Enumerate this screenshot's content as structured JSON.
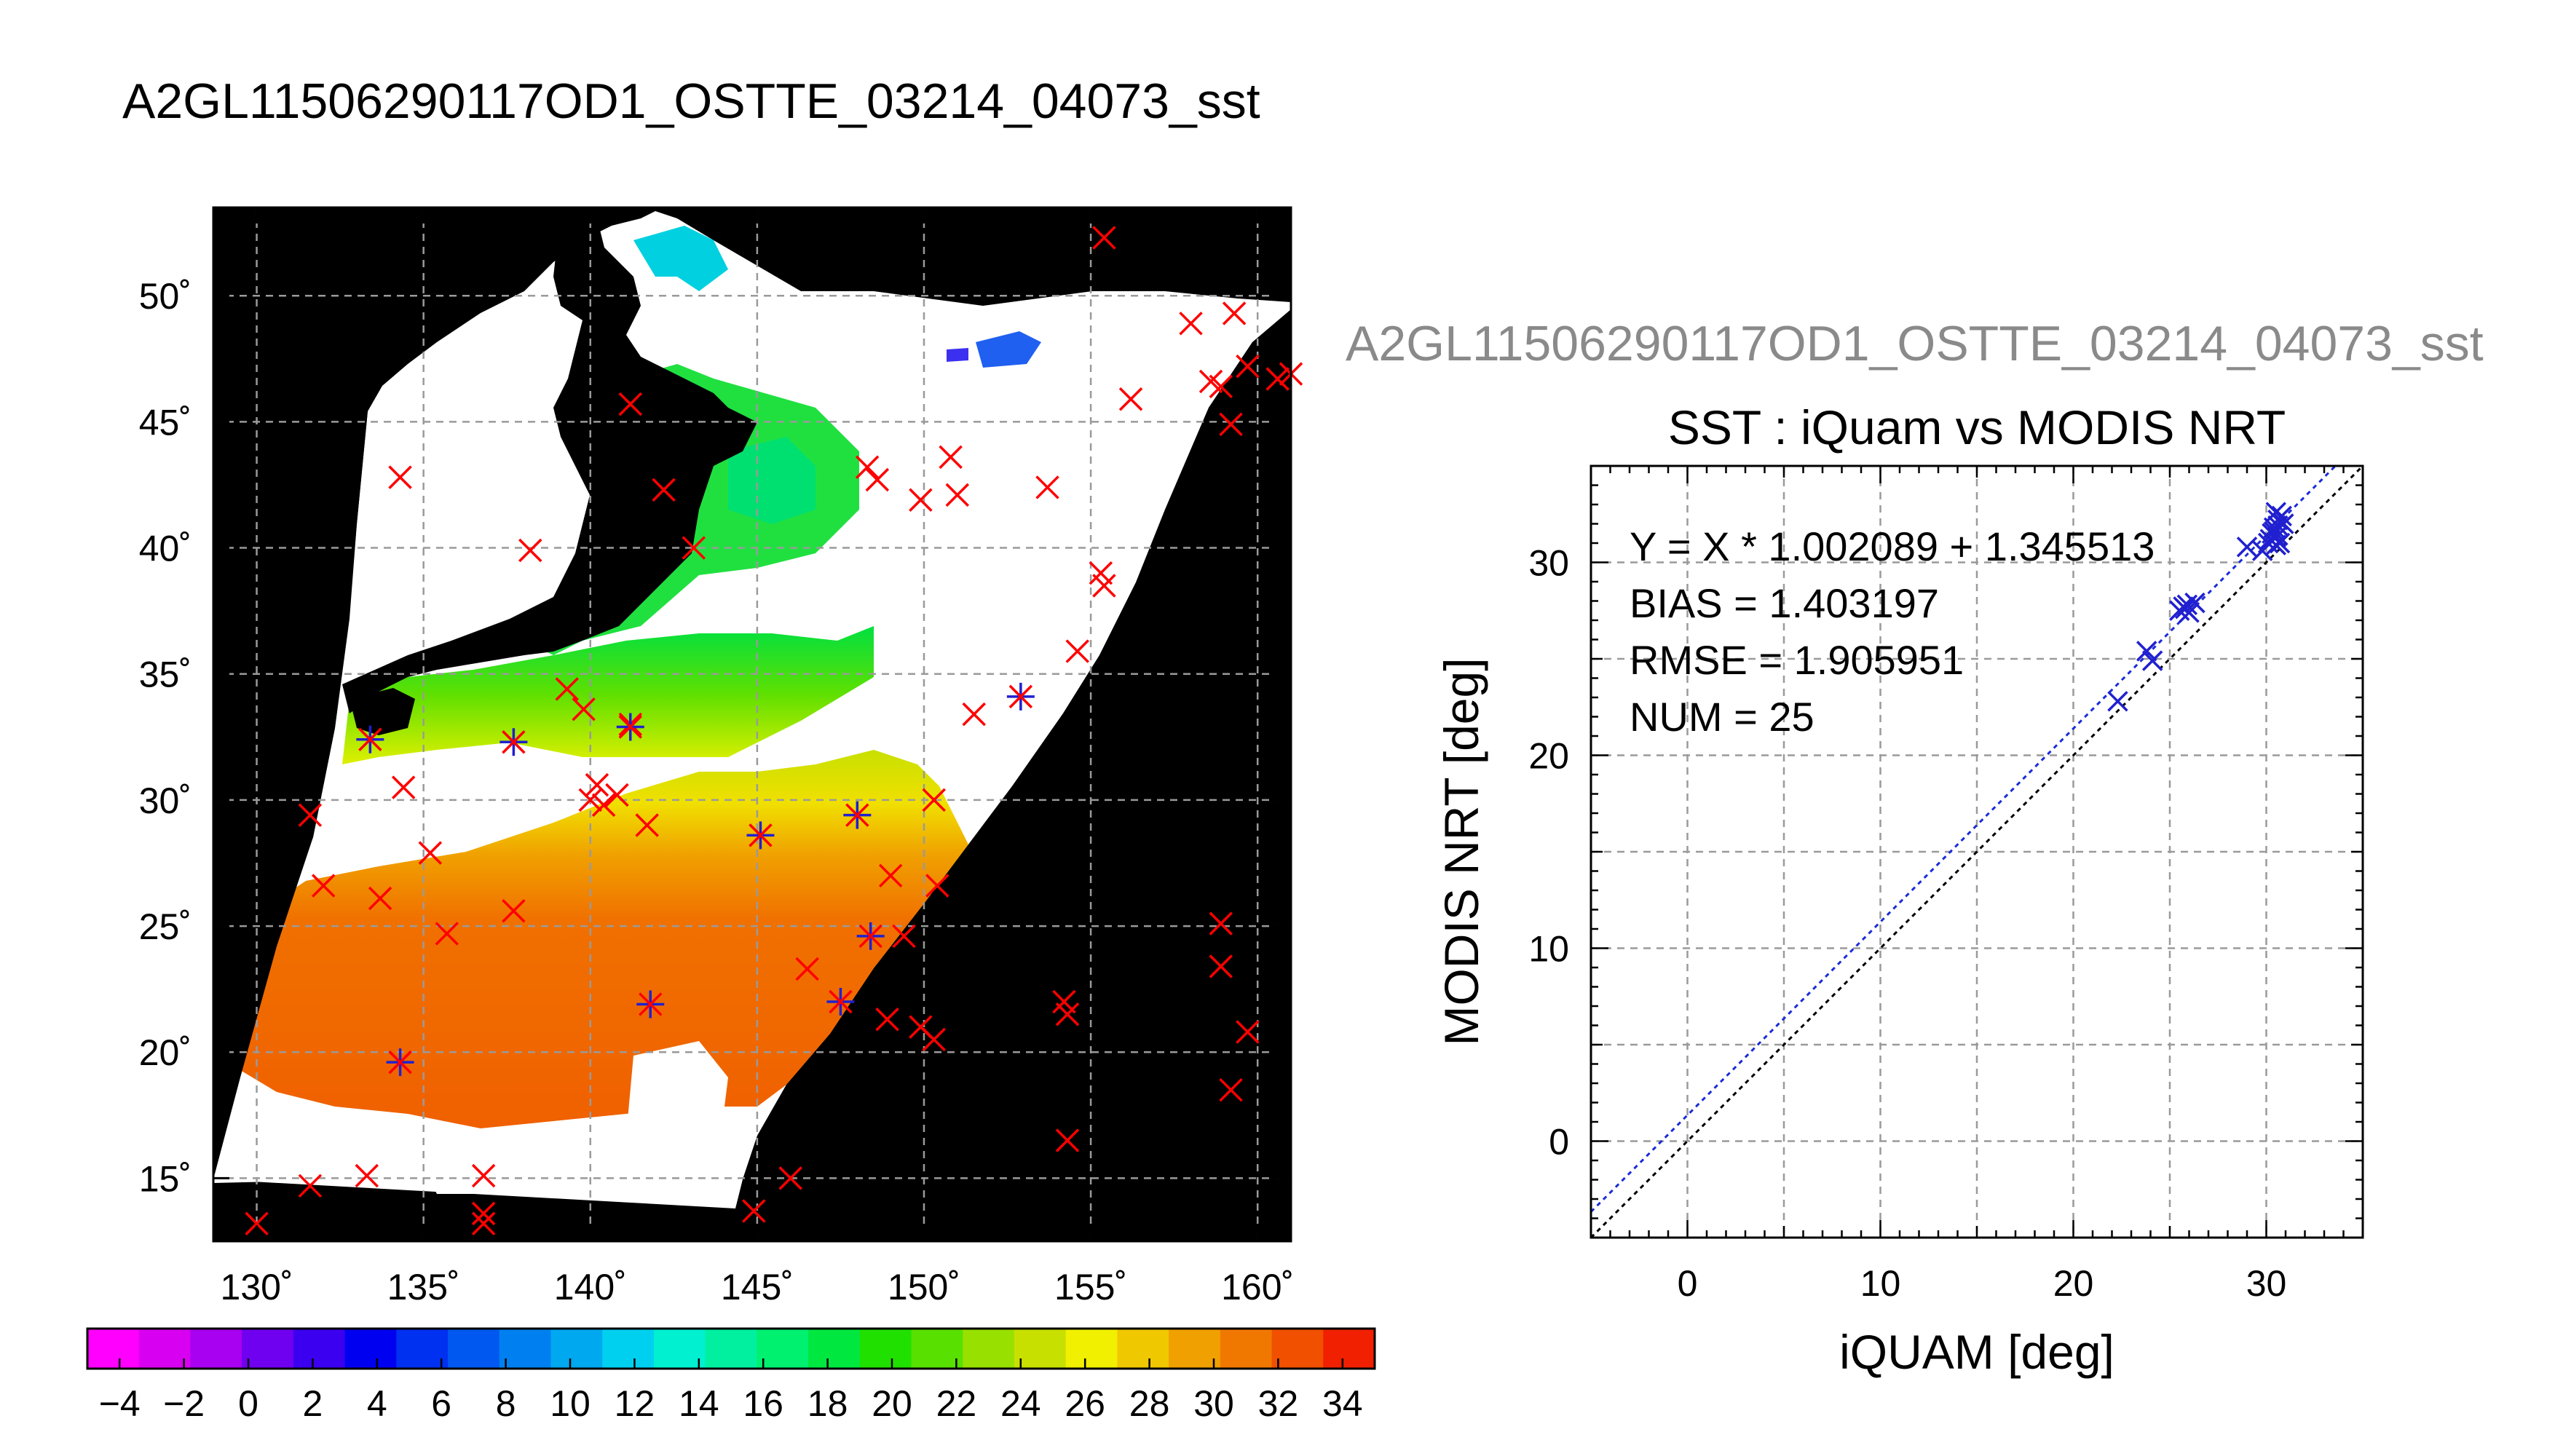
{
  "figure_title": "A2GL11506290117OD1_OSTTE_03214_04073_sst",
  "colors": {
    "land": "#000000",
    "cloud": "#ffffff",
    "match_marker": "#ff0000",
    "used_marker": "#2020d0",
    "fit_line": "#1a2cd8",
    "identity_line": "#000000",
    "grid": "#9a9a9a"
  },
  "chart_data": [
    {
      "type": "map",
      "title": "A2GL11506290117OD1_OSTTE_03214_04073_sst",
      "xlim": [
        128.7,
        161.0
      ],
      "ylim": [
        12.5,
        53.5
      ],
      "x_ticks": [
        "130˚",
        "135˚",
        "140˚",
        "145˚",
        "150˚",
        "155˚",
        "160˚"
      ],
      "x_tick_values": [
        130,
        135,
        140,
        145,
        150,
        155,
        160
      ],
      "y_ticks": [
        "15˚",
        "20˚",
        "25˚",
        "30˚",
        "35˚",
        "40˚",
        "45˚",
        "50˚"
      ],
      "y_tick_values": [
        15,
        20,
        25,
        30,
        35,
        40,
        45,
        50
      ],
      "grid": true,
      "colorbar": {
        "min": -5,
        "max": 35,
        "tick_labels": [
          "−4",
          "−2",
          "0",
          "2",
          "4",
          "6",
          "8",
          "10",
          "12",
          "14",
          "16",
          "18",
          "20",
          "22",
          "24",
          "26",
          "28",
          "30",
          "32",
          "34"
        ],
        "tick_values": [
          -4,
          -2,
          0,
          2,
          4,
          6,
          8,
          10,
          12,
          14,
          16,
          18,
          20,
          22,
          24,
          26,
          28,
          30,
          32,
          34
        ],
        "colors": [
          "#ff00ff",
          "#d800f0",
          "#a800f0",
          "#7000f0",
          "#3c00f0",
          "#0000f0",
          "#0030f0",
          "#0058f0",
          "#0080f0",
          "#00a8f0",
          "#00d0f0",
          "#00f0d0",
          "#00f0a0",
          "#00f070",
          "#00e840",
          "#20e000",
          "#58e000",
          "#98e000",
          "#c8e000",
          "#f0f000",
          "#f0c800",
          "#f0a000",
          "#f07800",
          "#f05000",
          "#f02000"
        ]
      },
      "matchups_red": [
        [
          130.0,
          13.2
        ],
        [
          131.6,
          14.7
        ],
        [
          133.3,
          15.1
        ],
        [
          136.8,
          15.1
        ],
        [
          136.8,
          13.2
        ],
        [
          136.8,
          13.6
        ],
        [
          144.9,
          13.7
        ],
        [
          146.0,
          15.0
        ],
        [
          131.6,
          29.4
        ],
        [
          132.0,
          26.6
        ],
        [
          133.7,
          26.1
        ],
        [
          134.4,
          30.5
        ],
        [
          135.2,
          27.9
        ],
        [
          135.7,
          24.7
        ],
        [
          137.7,
          25.6
        ],
        [
          134.3,
          42.8
        ],
        [
          138.2,
          39.9
        ],
        [
          139.3,
          34.4
        ],
        [
          139.8,
          33.6
        ],
        [
          140.0,
          30.0
        ],
        [
          140.2,
          30.6
        ],
        [
          140.4,
          29.8
        ],
        [
          140.8,
          30.2
        ],
        [
          141.2,
          45.7
        ],
        [
          141.2,
          33.0
        ],
        [
          141.7,
          29.0
        ],
        [
          142.2,
          42.3
        ],
        [
          143.1,
          40.0
        ],
        [
          148.3,
          43.2
        ],
        [
          148.6,
          42.7
        ],
        [
          149.4,
          24.6
        ],
        [
          149.0,
          27.0
        ],
        [
          148.9,
          21.3
        ],
        [
          149.9,
          21.0
        ],
        [
          150.3,
          20.5
        ],
        [
          150.3,
          30.0
        ],
        [
          150.4,
          26.6
        ],
        [
          149.9,
          41.9
        ],
        [
          150.8,
          43.6
        ],
        [
          151.0,
          42.1
        ],
        [
          151.5,
          33.4
        ],
        [
          153.7,
          42.4
        ],
        [
          154.2,
          22.0
        ],
        [
          154.3,
          21.5
        ],
        [
          154.3,
          16.5
        ],
        [
          154.6,
          35.9
        ],
        [
          146.5,
          23.3
        ],
        [
          155.4,
          52.3
        ],
        [
          155.3,
          39.0
        ],
        [
          155.4,
          38.5
        ],
        [
          156.2,
          45.9
        ],
        [
          158.0,
          48.9
        ],
        [
          158.6,
          46.6
        ],
        [
          158.9,
          46.4
        ],
        [
          159.3,
          49.3
        ],
        [
          159.2,
          44.9
        ],
        [
          159.7,
          47.2
        ],
        [
          160.6,
          46.7
        ],
        [
          158.9,
          25.1
        ],
        [
          158.9,
          23.4
        ],
        [
          159.7,
          20.8
        ],
        [
          159.2,
          18.5
        ],
        [
          161.0,
          46.9
        ]
      ],
      "matchups_used": [
        [
          133.4,
          32.4
        ],
        [
          134.3,
          19.6
        ],
        [
          137.7,
          32.3
        ],
        [
          141.2,
          32.9
        ],
        [
          141.8,
          21.9
        ],
        [
          145.1,
          28.6
        ],
        [
          147.5,
          22.0
        ],
        [
          148.0,
          29.4
        ],
        [
          148.4,
          24.6
        ],
        [
          152.9,
          34.1
        ]
      ]
    },
    {
      "type": "scatter",
      "figure_title": "A2GL11506290117OD1_OSTTE_03214_04073_sst",
      "title": "SST : iQuam vs MODIS NRT",
      "xlabel": "iQUAM [deg]",
      "ylabel": "MODIS NRT [deg]",
      "xlim": [
        -5,
        35
      ],
      "ylim": [
        -5,
        35
      ],
      "x_ticks": [
        "0",
        "10",
        "20",
        "30"
      ],
      "x_tick_values": [
        0,
        10,
        20,
        30
      ],
      "y_ticks": [
        "0",
        "10",
        "20",
        "30"
      ],
      "y_tick_values": [
        0,
        10,
        20,
        30
      ],
      "grid": true,
      "annotations": [
        "Y = X * 1.002089 + 1.345513",
        "BIAS = 1.403197",
        "RMSE = 1.905951",
        "NUM = 25"
      ],
      "fit": {
        "slope": 1.002089,
        "intercept": 1.345513
      },
      "points": [
        [
          22.3,
          22.8
        ],
        [
          23.8,
          25.4
        ],
        [
          24.1,
          24.9
        ],
        [
          25.5,
          27.5
        ],
        [
          25.8,
          27.6
        ],
        [
          25.9,
          27.8
        ],
        [
          26.0,
          27.4
        ],
        [
          26.3,
          27.9
        ],
        [
          25.7,
          27.7
        ],
        [
          29.0,
          30.8
        ],
        [
          30.1,
          31.0
        ],
        [
          30.3,
          31.5
        ],
        [
          30.4,
          31.8
        ],
        [
          30.5,
          31.3
        ],
        [
          30.6,
          32.2
        ],
        [
          30.7,
          31.0
        ],
        [
          30.5,
          30.9
        ],
        [
          30.4,
          31.6
        ],
        [
          30.6,
          31.9
        ],
        [
          30.8,
          32.4
        ],
        [
          30.2,
          31.2
        ],
        [
          30.9,
          32.0
        ],
        [
          29.8,
          30.6
        ],
        [
          30.5,
          32.6
        ],
        [
          30.6,
          31.4
        ]
      ]
    }
  ]
}
